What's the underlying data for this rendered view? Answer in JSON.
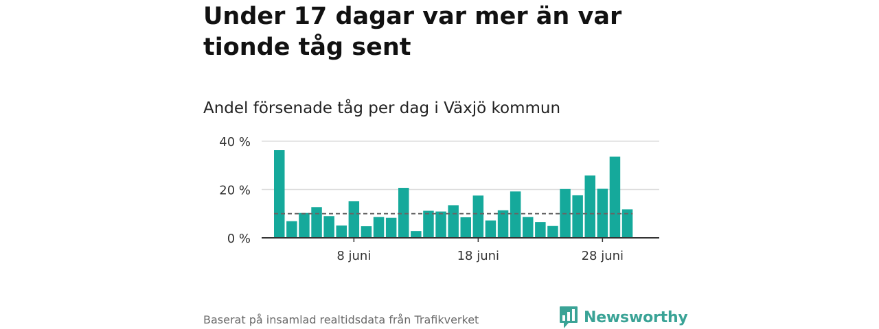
{
  "title": "Under 17 dagar var mer än var tionde tåg sent",
  "subtitle": "Andel försenade tåg per dag i Växjö kommun",
  "source": "Baserat på insamlad realtidsdata från Trafikverket",
  "brand": {
    "name": "Newsworthy",
    "icon": "newsworthy-logo-icon",
    "color": "#3aa396"
  },
  "colors": {
    "bar": "#15a99b",
    "reference_line": "#666666",
    "grid": "#dddddd",
    "axis": "#333333"
  },
  "chart_data": {
    "type": "bar",
    "x": [
      "2 juni",
      "3 juni",
      "4 juni",
      "5 juni",
      "6 juni",
      "7 juni",
      "8 juni",
      "9 juni",
      "10 juni",
      "11 juni",
      "12 juni",
      "13 juni",
      "14 juni",
      "15 juni",
      "16 juni",
      "17 juni",
      "18 juni",
      "19 juni",
      "20 juni",
      "21 juni",
      "22 juni",
      "23 juni",
      "24 juni",
      "25 juni",
      "26 juni",
      "27 juni",
      "28 juni",
      "29 juni",
      "30 juni"
    ],
    "values": [
      36.3,
      6.9,
      10.3,
      12.7,
      9.0,
      5.1,
      15.2,
      4.8,
      8.6,
      8.3,
      20.7,
      2.8,
      11.2,
      10.9,
      13.5,
      8.5,
      17.5,
      7.2,
      11.4,
      19.2,
      8.6,
      6.5,
      4.9,
      20.2,
      17.6,
      25.8,
      20.3,
      33.6,
      11.8
    ],
    "reference_value": 10,
    "reference_style": "dashed",
    "xticks": [
      "8 juni",
      "18 juni",
      "28 juni"
    ],
    "yticks": [
      0,
      20,
      40
    ],
    "ytick_labels": [
      "0 %",
      "20 %",
      "40 %"
    ],
    "ylim": [
      0,
      40
    ],
    "grid": true,
    "legend": "none"
  }
}
